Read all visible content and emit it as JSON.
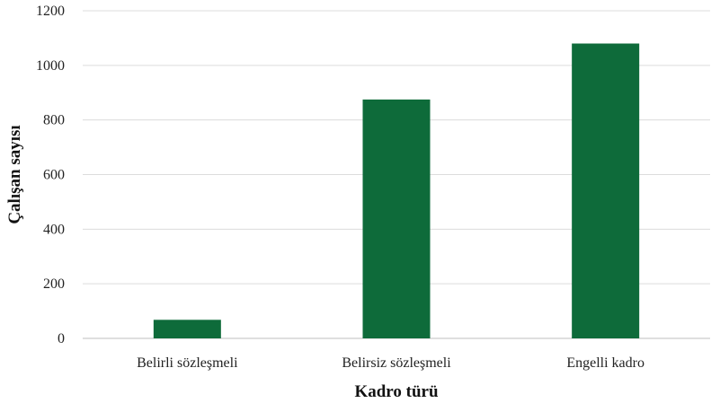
{
  "chart_data": {
    "type": "bar",
    "categories": [
      "Belirli sözleşmeli",
      "Belirsiz sözleşmeli",
      "Engelli kadro"
    ],
    "values": [
      68,
      875,
      1080
    ],
    "xlabel": "Kadro türü",
    "ylabel": "Çalışan sayısı",
    "ylim": [
      0,
      1200
    ],
    "yticks": [
      0,
      200,
      400,
      600,
      800,
      1000,
      1200
    ],
    "grid": true,
    "legend": "none",
    "bar_color": "#0e6b3a"
  }
}
